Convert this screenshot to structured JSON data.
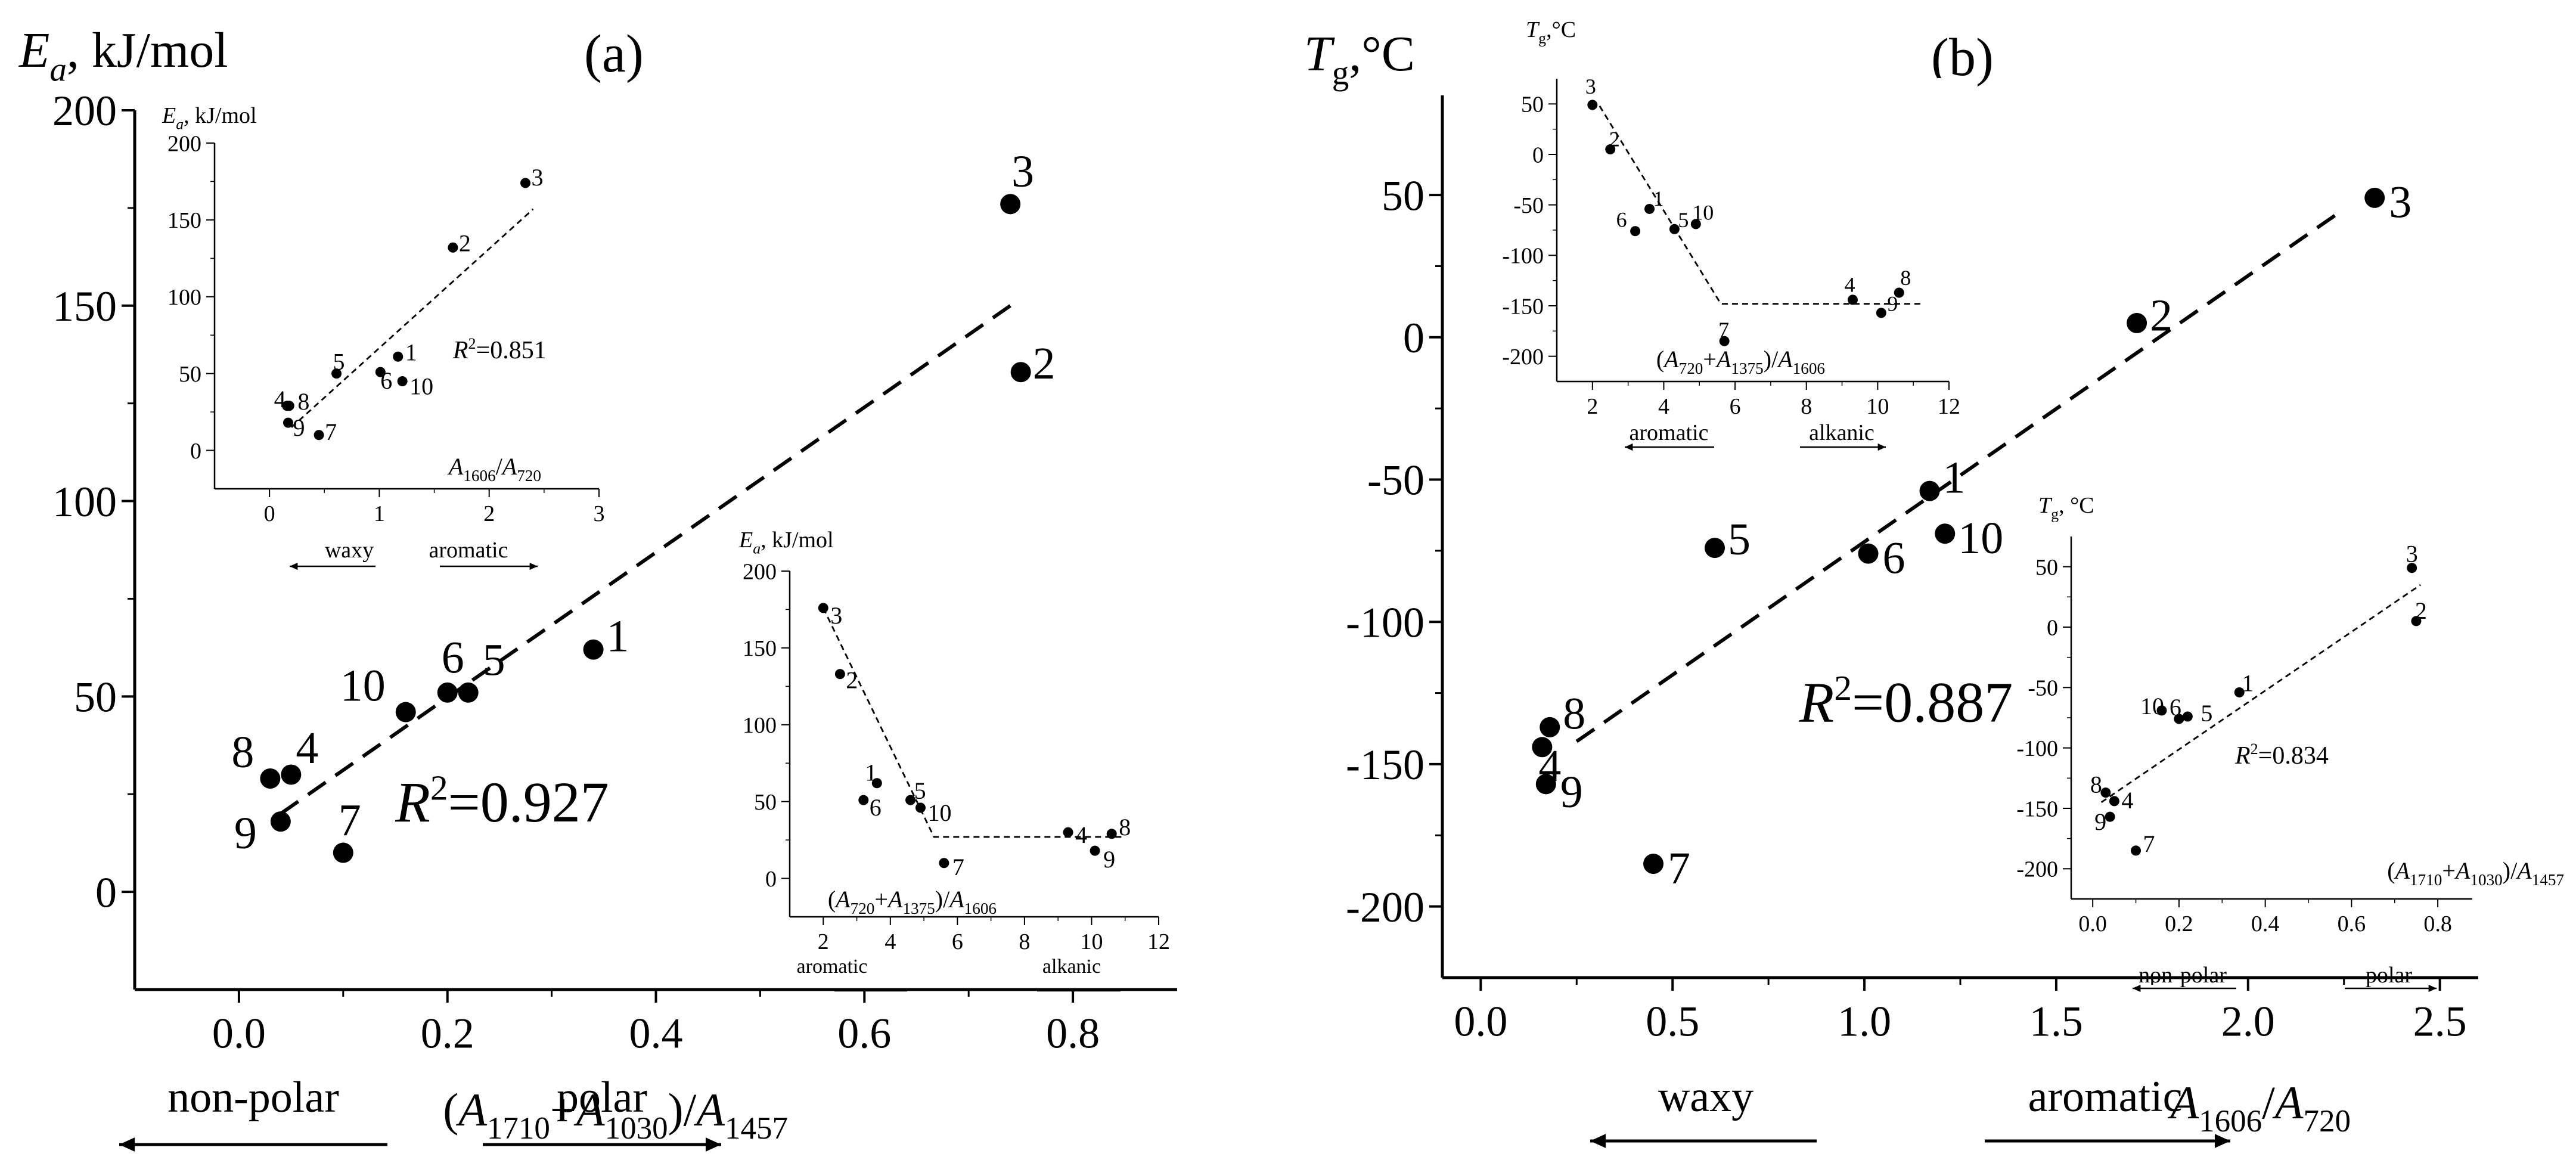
{
  "chart_data": [
    {
      "id": "a-main",
      "panel_label": "(a)",
      "type": "scatter",
      "title": "",
      "ylabel": {
        "sym": "E",
        "sub": "a",
        "rest": ", kJ/mol"
      },
      "xlabel": [
        {
          "t": "("
        },
        {
          "t": "A",
          "sub": "1710"
        },
        {
          "t": "+"
        },
        {
          "t": "A",
          "sub": "1030"
        },
        {
          "t": ")/"
        },
        {
          "t": "A",
          "sub": "1457"
        }
      ],
      "xlim": [
        -0.1,
        0.9
      ],
      "ylim": [
        -25,
        200
      ],
      "xticks": [
        0.0,
        0.2,
        0.4,
        0.6,
        0.8
      ],
      "yticks": [
        0,
        50,
        100,
        150,
        200
      ],
      "xtick_labels": [
        "0.0",
        "0.2",
        "0.4",
        "0.6",
        "0.8"
      ],
      "ytick_labels": [
        "0",
        "50",
        "100",
        "150",
        "200"
      ],
      "points": [
        {
          "label": "1",
          "x": 0.34,
          "y": 62
        },
        {
          "label": "2",
          "x": 0.75,
          "y": 133
        },
        {
          "label": "3",
          "x": 0.74,
          "y": 176
        },
        {
          "label": "4",
          "x": 0.05,
          "y": 30
        },
        {
          "label": "5",
          "x": 0.22,
          "y": 51
        },
        {
          "label": "6",
          "x": 0.2,
          "y": 51
        },
        {
          "label": "7",
          "x": 0.1,
          "y": 10
        },
        {
          "label": "8",
          "x": 0.03,
          "y": 29
        },
        {
          "label": "9",
          "x": 0.04,
          "y": 18
        },
        {
          "label": "10",
          "x": 0.16,
          "y": 46
        }
      ],
      "fit_line": [
        [
          0.04,
          20
        ],
        [
          0.74,
          150
        ]
      ],
      "r2": "0.927",
      "arrows": [
        {
          "label": "non-polar",
          "dir": "left"
        },
        {
          "label": "polar",
          "dir": "right"
        }
      ]
    },
    {
      "id": "a-inset1",
      "type": "scatter",
      "ylabel": {
        "sym": "E",
        "sub": "a",
        "rest": ", kJ/mol"
      },
      "xlabel": [
        {
          "t": "A",
          "sub": "1606"
        },
        {
          "t": "/"
        },
        {
          "t": "A",
          "sub": "720"
        }
      ],
      "xlim": [
        -0.5,
        3
      ],
      "ylim": [
        -25,
        200
      ],
      "xticks": [
        0,
        1,
        2,
        3
      ],
      "yticks": [
        0,
        50,
        100,
        150,
        200
      ],
      "xtick_labels": [
        "0",
        "1",
        "2",
        "3"
      ],
      "ytick_labels": [
        "0",
        "50",
        "100",
        "150",
        "200"
      ],
      "points": [
        {
          "label": "1",
          "x": 1.17,
          "y": 61
        },
        {
          "label": "2",
          "x": 1.67,
          "y": 132
        },
        {
          "label": "3",
          "x": 2.33,
          "y": 174
        },
        {
          "label": "4",
          "x": 0.16,
          "y": 29
        },
        {
          "label": "5",
          "x": 0.61,
          "y": 50
        },
        {
          "label": "6",
          "x": 1.01,
          "y": 51
        },
        {
          "label": "7",
          "x": 0.45,
          "y": 10
        },
        {
          "label": "8",
          "x": 0.18,
          "y": 29
        },
        {
          "label": "9",
          "x": 0.17,
          "y": 18
        },
        {
          "label": "10",
          "x": 1.21,
          "y": 45
        }
      ],
      "fit_line": [
        [
          0.2,
          15
        ],
        [
          2.4,
          157
        ]
      ],
      "r2": "0.851",
      "arrows": [
        {
          "label": "waxy",
          "dir": "left"
        },
        {
          "label": "aromatic",
          "dir": "right"
        }
      ]
    },
    {
      "id": "a-inset2",
      "type": "scatter",
      "ylabel": {
        "sym": "E",
        "sub": "a",
        "rest": ", kJ/mol"
      },
      "xlabel": [
        {
          "t": "("
        },
        {
          "t": "A",
          "sub": "720"
        },
        {
          "t": "+"
        },
        {
          "t": "A",
          "sub": "1375"
        },
        {
          "t": ")/"
        },
        {
          "t": "A",
          "sub": "1606"
        }
      ],
      "xlim": [
        1,
        12
      ],
      "ylim": [
        -25,
        200
      ],
      "xticks": [
        2,
        4,
        6,
        8,
        10,
        12
      ],
      "yticks": [
        0,
        50,
        100,
        150,
        200
      ],
      "xtick_labels": [
        "2",
        "4",
        "6",
        "8",
        "10",
        "12"
      ],
      "ytick_labels": [
        "0",
        "50",
        "100",
        "150",
        "200"
      ],
      "points": [
        {
          "label": "1",
          "x": 3.6,
          "y": 62
        },
        {
          "label": "2",
          "x": 2.5,
          "y": 133
        },
        {
          "label": "3",
          "x": 2.0,
          "y": 176
        },
        {
          "label": "4",
          "x": 9.3,
          "y": 30
        },
        {
          "label": "5",
          "x": 4.6,
          "y": 51
        },
        {
          "label": "6",
          "x": 3.2,
          "y": 51
        },
        {
          "label": "7",
          "x": 5.6,
          "y": 10
        },
        {
          "label": "8",
          "x": 10.6,
          "y": 29
        },
        {
          "label": "9",
          "x": 10.1,
          "y": 18
        },
        {
          "label": "10",
          "x": 4.9,
          "y": 46
        }
      ],
      "fit_line": [
        [
          2.0,
          176
        ],
        [
          5.3,
          27
        ],
        [
          10.9,
          27
        ]
      ],
      "arrows": [
        {
          "label": "aromatic",
          "dir": "none"
        },
        {
          "label": "alkanic",
          "dir": "none"
        }
      ]
    },
    {
      "id": "b-main",
      "panel_label": "(b)",
      "type": "scatter",
      "ylabel": {
        "sym": "T",
        "sub": "g",
        "rest": ",°C"
      },
      "xlabel": [
        {
          "t": "A",
          "sub": "1606"
        },
        {
          "t": "/"
        },
        {
          "t": "A",
          "sub": "720"
        }
      ],
      "xlim": [
        -0.1,
        2.6
      ],
      "ylim": [
        -225,
        85
      ],
      "xticks": [
        0.0,
        0.5,
        1.0,
        1.5,
        2.0,
        2.5
      ],
      "yticks": [
        -200,
        -150,
        -100,
        -50,
        0,
        50
      ],
      "xtick_labels": [
        "0.0",
        "0.5",
        "1.0",
        "1.5",
        "2.0",
        "2.5"
      ],
      "ytick_labels": [
        "-200",
        "-150",
        "-100",
        "-50",
        "0",
        "50"
      ],
      "points": [
        {
          "label": "1",
          "x": 1.17,
          "y": -54
        },
        {
          "label": "2",
          "x": 1.71,
          "y": 5
        },
        {
          "label": "3",
          "x": 2.33,
          "y": 49
        },
        {
          "label": "4",
          "x": 0.16,
          "y": -144
        },
        {
          "label": "5",
          "x": 0.61,
          "y": -74
        },
        {
          "label": "6",
          "x": 1.01,
          "y": -76
        },
        {
          "label": "7",
          "x": 0.45,
          "y": -185
        },
        {
          "label": "8",
          "x": 0.18,
          "y": -137
        },
        {
          "label": "9",
          "x": 0.17,
          "y": -157
        },
        {
          "label": "10",
          "x": 1.21,
          "y": -69
        }
      ],
      "fit_line": [
        [
          0.25,
          -142
        ],
        [
          2.25,
          45
        ]
      ],
      "r2": "0.887",
      "arrows": [
        {
          "label": "waxy",
          "dir": "left"
        },
        {
          "label": "aromatic",
          "dir": "right"
        }
      ]
    },
    {
      "id": "b-inset1",
      "type": "scatter",
      "ylabel": {
        "sym": "T",
        "sub": "g",
        "rest": ",°C"
      },
      "xlabel": [
        {
          "t": "("
        },
        {
          "t": "A",
          "sub": "720"
        },
        {
          "t": "+"
        },
        {
          "t": "A",
          "sub": "1375"
        },
        {
          "t": ")/"
        },
        {
          "t": "A",
          "sub": "1606"
        }
      ],
      "xlim": [
        1,
        12
      ],
      "ylim": [
        -225,
        75
      ],
      "xticks": [
        2,
        4,
        6,
        8,
        10,
        12
      ],
      "yticks": [
        -200,
        -150,
        -100,
        -50,
        0,
        50
      ],
      "xtick_labels": [
        "2",
        "4",
        "6",
        "8",
        "10",
        "12"
      ],
      "ytick_labels": [
        "-200",
        "-150",
        "-100",
        "-50",
        "0",
        "50"
      ],
      "points": [
        {
          "label": "1",
          "x": 3.6,
          "y": -54
        },
        {
          "label": "2",
          "x": 2.5,
          "y": 5
        },
        {
          "label": "3",
          "x": 2.0,
          "y": 49
        },
        {
          "label": "4",
          "x": 9.3,
          "y": -144
        },
        {
          "label": "5",
          "x": 4.3,
          "y": -74
        },
        {
          "label": "6",
          "x": 3.2,
          "y": -76
        },
        {
          "label": "7",
          "x": 5.7,
          "y": -185
        },
        {
          "label": "8",
          "x": 10.6,
          "y": -137
        },
        {
          "label": "9",
          "x": 10.1,
          "y": -157
        },
        {
          "label": "10",
          "x": 4.9,
          "y": -69
        }
      ],
      "fit_line": [
        [
          2.2,
          48
        ],
        [
          5.6,
          -148
        ],
        [
          11.3,
          -148
        ]
      ],
      "arrows": [
        {
          "label": "aromatic",
          "dir": "left"
        },
        {
          "label": "alkanic",
          "dir": "right"
        }
      ]
    },
    {
      "id": "b-inset2",
      "type": "scatter",
      "ylabel": {
        "sym": "T",
        "sub": "g",
        "rest": ", °C"
      },
      "xlabel": [
        {
          "t": "("
        },
        {
          "t": "A",
          "sub": "1710"
        },
        {
          "t": "+"
        },
        {
          "t": "A",
          "sub": "1030"
        },
        {
          "t": ")/"
        },
        {
          "t": "A",
          "sub": "1457"
        }
      ],
      "xlim": [
        -0.05,
        0.88
      ],
      "ylim": [
        -225,
        75
      ],
      "xticks": [
        0.0,
        0.2,
        0.4,
        0.6,
        0.8
      ],
      "yticks": [
        -200,
        -150,
        -100,
        -50,
        0,
        50
      ],
      "xtick_labels": [
        "0.0",
        "0.2",
        "0.4",
        "0.6",
        "0.8"
      ],
      "ytick_labels": [
        "-200",
        "-150",
        "-100",
        "-50",
        "0",
        "50"
      ],
      "points": [
        {
          "label": "1",
          "x": 0.34,
          "y": -54
        },
        {
          "label": "2",
          "x": 0.75,
          "y": 5
        },
        {
          "label": "3",
          "x": 0.74,
          "y": 49
        },
        {
          "label": "4",
          "x": 0.05,
          "y": -144
        },
        {
          "label": "5",
          "x": 0.22,
          "y": -74
        },
        {
          "label": "6",
          "x": 0.2,
          "y": -76
        },
        {
          "label": "7",
          "x": 0.1,
          "y": -185
        },
        {
          "label": "8",
          "x": 0.03,
          "y": -137
        },
        {
          "label": "9",
          "x": 0.04,
          "y": -157
        },
        {
          "label": "10",
          "x": 0.16,
          "y": -69
        }
      ],
      "fit_line": [
        [
          0.02,
          -145
        ],
        [
          0.76,
          35
        ]
      ],
      "r2": "0.834",
      "arrows": [
        {
          "label": "non-polar",
          "dir": "left"
        },
        {
          "label": "polar",
          "dir": "right"
        }
      ]
    }
  ]
}
